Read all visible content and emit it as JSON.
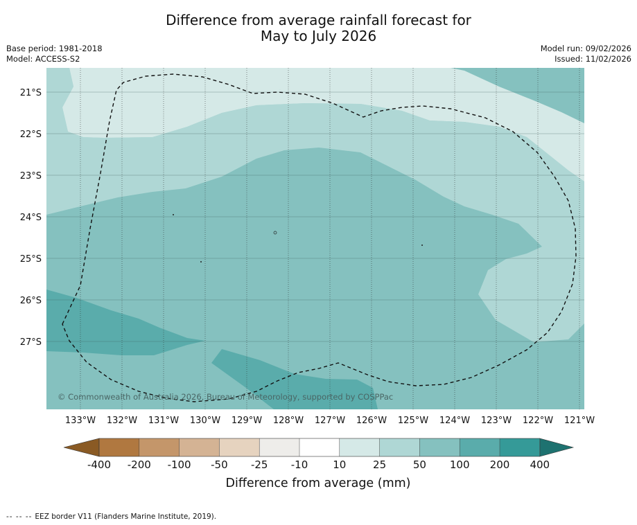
{
  "title": {
    "line1": "Difference from average rainfall forecast for",
    "line2": "May to July 2026"
  },
  "meta": {
    "base_period": "Base period: 1981-2018",
    "model": "Model: ACCESS-S2",
    "model_run": "Model run: 09/02/2026",
    "issued": "Issued: 11/02/2026"
  },
  "map": {
    "lat_labels": [
      "21°S",
      "22°S",
      "23°S",
      "24°S",
      "25°S",
      "26°S",
      "27°S"
    ],
    "lon_labels": [
      "133°W",
      "132°W",
      "131°W",
      "130°W",
      "129°W",
      "128°W",
      "127°W",
      "126°W",
      "125°W",
      "124°W",
      "123°W",
      "122°W",
      "121°W"
    ],
    "copyright": "© Commonwealth of Australia 2026, Bureau of Meteorology, supported by COSPPac"
  },
  "legend": {
    "ticks": [
      "-400",
      "-200",
      "-100",
      "-50",
      "-25",
      "-10",
      "10",
      "25",
      "50",
      "100",
      "200",
      "400"
    ],
    "colors": [
      "#8a5a24",
      "#b07840",
      "#c4966a",
      "#d4b394",
      "#e6d3bf",
      "#eeedea",
      "#ffffff",
      "#d5e9e7",
      "#afd7d5",
      "#85c1bf",
      "#5aacab",
      "#359a98",
      "#1e7270"
    ],
    "label": "Difference from average (mm)"
  },
  "footer": {
    "dashes": "-- -- --",
    "text": "EEZ border V11 (Flanders Marine Institute, 2019)."
  }
}
